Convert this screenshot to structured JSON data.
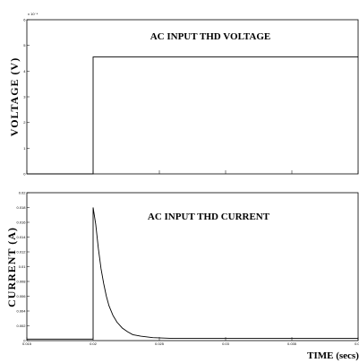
{
  "chart_data": [
    {
      "type": "line",
      "title": "AC INPUT THD VOLTAGE",
      "ylabel": "VOLTAGE (V)",
      "y_exponent": "x 10⁻⁴",
      "xlim": [
        0.015,
        0.04
      ],
      "ylim": [
        0,
        6
      ],
      "x_ticks": [
        0.015,
        0.02,
        0.025,
        0.03,
        0.035,
        0.04
      ],
      "y_ticks": [
        {
          "v": 0,
          "label": "0"
        },
        {
          "v": 1,
          "label": "1"
        },
        {
          "v": 2,
          "label": "2"
        },
        {
          "v": 3,
          "label": "3"
        },
        {
          "v": 4,
          "label": "4"
        },
        {
          "v": 5,
          "label": "5"
        },
        {
          "v": 6,
          "label": "6"
        }
      ],
      "series": [
        {
          "points": [
            [
              0.015,
              0
            ],
            [
              0.02,
              0
            ],
            [
              0.02,
              4.55
            ],
            [
              0.04,
              4.55
            ]
          ]
        }
      ]
    },
    {
      "type": "line",
      "title": "AC INPUT THD CURRENT",
      "ylabel": "CURRENT (A)",
      "xlabel": "TIME (secs)",
      "xlim": [
        0.015,
        0.04
      ],
      "ylim": [
        0,
        0.02
      ],
      "x_ticks": [
        {
          "v": 0.015,
          "label": "0.015"
        },
        {
          "v": 0.02,
          "label": "0.02"
        },
        {
          "v": 0.025,
          "label": "0.025"
        },
        {
          "v": 0.03,
          "label": "0.03"
        },
        {
          "v": 0.035,
          "label": "0.035"
        },
        {
          "v": 0.04,
          "label": "0.04"
        }
      ],
      "y_ticks": [
        {
          "v": 0,
          "label": "0"
        },
        {
          "v": 0.002,
          "label": "0.002"
        },
        {
          "v": 0.004,
          "label": "0.004"
        },
        {
          "v": 0.006,
          "label": "0.006"
        },
        {
          "v": 0.008,
          "label": "0.008"
        },
        {
          "v": 0.01,
          "label": "0.01"
        },
        {
          "v": 0.012,
          "label": "0.012"
        },
        {
          "v": 0.014,
          "label": "0.014"
        },
        {
          "v": 0.016,
          "label": "0.016"
        },
        {
          "v": 0.018,
          "label": "0.018"
        },
        {
          "v": 0.02,
          "label": "0.02"
        }
      ],
      "series": [
        {
          "points": [
            [
              0.015,
              0.0002
            ],
            [
              0.02,
              0.0002
            ],
            [
              0.02,
              0.018
            ],
            [
              0.0202,
              0.0157
            ],
            [
              0.0204,
              0.0124
            ],
            [
              0.0206,
              0.0097
            ],
            [
              0.0208,
              0.0077
            ],
            [
              0.021,
              0.006
            ],
            [
              0.0212,
              0.0047
            ],
            [
              0.0215,
              0.0034
            ],
            [
              0.0218,
              0.0025
            ],
            [
              0.0222,
              0.0017
            ],
            [
              0.0226,
              0.0012
            ],
            [
              0.023,
              0.0008
            ],
            [
              0.0236,
              0.0006
            ],
            [
              0.0245,
              0.0004
            ],
            [
              0.026,
              0.0003
            ],
            [
              0.03,
              0.0003
            ],
            [
              0.04,
              0.0003
            ]
          ]
        }
      ]
    }
  ]
}
